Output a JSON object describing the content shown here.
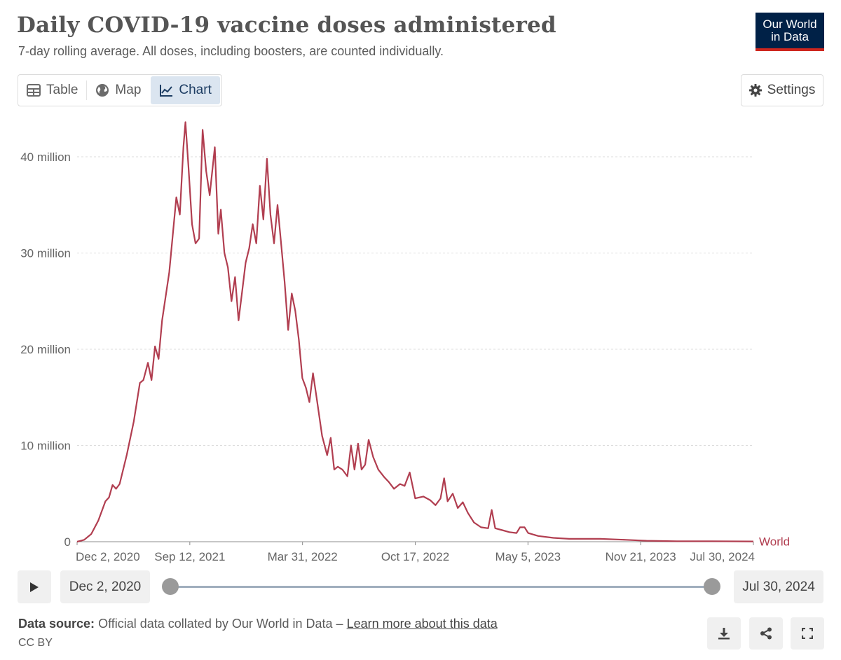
{
  "header": {
    "title": "Daily COVID-19 vaccine doses administered",
    "subtitle": "7-day rolling average. All doses, including boosters, are counted individually.",
    "logo_line1": "Our World",
    "logo_line2": "in Data"
  },
  "tabs": [
    {
      "label": "Table",
      "icon": "table-icon",
      "active": false
    },
    {
      "label": "Map",
      "icon": "globe-icon",
      "active": false
    },
    {
      "label": "Chart",
      "icon": "line-chart-icon",
      "active": true
    }
  ],
  "settings_label": "Settings",
  "timeline": {
    "start_label": "Dec 2, 2020",
    "end_label": "Jul 30, 2024"
  },
  "footer": {
    "source_prefix": "Data source:",
    "source_text": "Official data collated by Our World in Data –",
    "learn_more": "Learn more about this data",
    "license": "CC BY"
  },
  "colors": {
    "series": "#b13e50",
    "accent": "#002147",
    "logo_bar": "#ce261e"
  },
  "chart_data": {
    "type": "line",
    "title": "Daily COVID-19 vaccine doses administered",
    "subtitle": "7-day rolling average. All doses, including boosters, are counted individually.",
    "xlabel": "",
    "ylabel": "",
    "y_ticks": [
      {
        "value": 0,
        "label": "0"
      },
      {
        "value": 10,
        "label": "10 million"
      },
      {
        "value": 20,
        "label": "20 million"
      },
      {
        "value": 30,
        "label": "30 million"
      },
      {
        "value": 40,
        "label": "40 million"
      }
    ],
    "ylim": [
      0,
      44
    ],
    "x_ticks": [
      "Dec 2, 2020",
      "Sep 12, 2021",
      "Mar 31, 2022",
      "Oct 17, 2022",
      "May 5, 2023",
      "Nov 21, 2023",
      "Jul 30, 2024"
    ],
    "xlim": [
      "2020-12-02",
      "2024-07-30"
    ],
    "grid": "horizontal dashed",
    "series": [
      {
        "name": "World",
        "unit": "million doses",
        "points": [
          [
            "2020-12-02",
            0.0
          ],
          [
            "2020-12-16",
            0.2
          ],
          [
            "2020-12-30",
            0.8
          ],
          [
            "2021-01-13",
            2.2
          ],
          [
            "2021-01-27",
            4.2
          ],
          [
            "2021-02-03",
            4.6
          ],
          [
            "2021-02-10",
            5.9
          ],
          [
            "2021-02-17",
            5.5
          ],
          [
            "2021-02-24",
            6.0
          ],
          [
            "2021-03-10",
            9.0
          ],
          [
            "2021-03-24",
            12.5
          ],
          [
            "2021-04-05",
            16.5
          ],
          [
            "2021-04-12",
            16.8
          ],
          [
            "2021-04-21",
            18.6
          ],
          [
            "2021-04-28",
            16.8
          ],
          [
            "2021-05-05",
            20.3
          ],
          [
            "2021-05-12",
            19.0
          ],
          [
            "2021-05-19",
            23.0
          ],
          [
            "2021-06-02",
            28.0
          ],
          [
            "2021-06-16",
            35.8
          ],
          [
            "2021-06-23",
            34.0
          ],
          [
            "2021-06-30",
            41.0
          ],
          [
            "2021-07-04",
            43.6
          ],
          [
            "2021-07-10",
            39.0
          ],
          [
            "2021-07-17",
            33.0
          ],
          [
            "2021-07-24",
            31.0
          ],
          [
            "2021-07-31",
            31.5
          ],
          [
            "2021-08-07",
            42.8
          ],
          [
            "2021-08-14",
            38.5
          ],
          [
            "2021-08-21",
            36.0
          ],
          [
            "2021-08-31",
            41.0
          ],
          [
            "2021-09-07",
            32.0
          ],
          [
            "2021-09-12",
            34.5
          ],
          [
            "2021-09-19",
            30.0
          ],
          [
            "2021-09-26",
            28.5
          ],
          [
            "2021-10-03",
            25.0
          ],
          [
            "2021-10-10",
            27.5
          ],
          [
            "2021-10-17",
            23.0
          ],
          [
            "2021-10-24",
            26.0
          ],
          [
            "2021-10-31",
            29.0
          ],
          [
            "2021-11-07",
            30.5
          ],
          [
            "2021-11-14",
            33.0
          ],
          [
            "2021-11-21",
            31.0
          ],
          [
            "2021-11-28",
            37.0
          ],
          [
            "2021-12-05",
            33.5
          ],
          [
            "2021-12-12",
            39.8
          ],
          [
            "2021-12-19",
            34.0
          ],
          [
            "2021-12-26",
            31.0
          ],
          [
            "2022-01-02",
            35.0
          ],
          [
            "2022-01-09",
            31.0
          ],
          [
            "2022-01-16",
            27.0
          ],
          [
            "2022-01-23",
            22.0
          ],
          [
            "2022-01-30",
            25.8
          ],
          [
            "2022-02-06",
            24.0
          ],
          [
            "2022-02-13",
            21.0
          ],
          [
            "2022-02-20",
            17.0
          ],
          [
            "2022-02-27",
            16.0
          ],
          [
            "2022-03-06",
            14.5
          ],
          [
            "2022-03-13",
            17.5
          ],
          [
            "2022-03-20",
            15.0
          ],
          [
            "2022-03-31",
            11.0
          ],
          [
            "2022-04-10",
            9.0
          ],
          [
            "2022-04-17",
            10.8
          ],
          [
            "2022-04-24",
            7.5
          ],
          [
            "2022-05-01",
            7.8
          ],
          [
            "2022-05-10",
            7.5
          ],
          [
            "2022-05-20",
            6.8
          ],
          [
            "2022-05-27",
            10.0
          ],
          [
            "2022-06-03",
            7.5
          ],
          [
            "2022-06-10",
            10.2
          ],
          [
            "2022-06-17",
            7.5
          ],
          [
            "2022-06-24",
            8.0
          ],
          [
            "2022-07-01",
            10.6
          ],
          [
            "2022-07-10",
            8.8
          ],
          [
            "2022-07-20",
            7.5
          ],
          [
            "2022-08-01",
            6.7
          ],
          [
            "2022-08-10",
            6.2
          ],
          [
            "2022-08-20",
            5.5
          ],
          [
            "2022-09-01",
            6.0
          ],
          [
            "2022-09-10",
            5.8
          ],
          [
            "2022-09-20",
            7.2
          ],
          [
            "2022-10-01",
            4.5
          ],
          [
            "2022-10-17",
            4.7
          ],
          [
            "2022-10-31",
            4.3
          ],
          [
            "2022-11-10",
            3.8
          ],
          [
            "2022-11-20",
            4.5
          ],
          [
            "2022-11-27",
            6.6
          ],
          [
            "2022-12-04",
            4.2
          ],
          [
            "2022-12-14",
            5.0
          ],
          [
            "2022-12-24",
            3.5
          ],
          [
            "2023-01-03",
            4.1
          ],
          [
            "2023-01-13",
            3.0
          ],
          [
            "2023-01-25",
            2.0
          ],
          [
            "2023-02-08",
            1.5
          ],
          [
            "2023-02-22",
            1.4
          ],
          [
            "2023-03-01",
            3.3
          ],
          [
            "2023-03-08",
            1.4
          ],
          [
            "2023-03-22",
            1.2
          ],
          [
            "2023-04-05",
            1.0
          ],
          [
            "2023-04-19",
            0.9
          ],
          [
            "2023-04-26",
            1.5
          ],
          [
            "2023-05-05",
            1.5
          ],
          [
            "2023-05-12",
            0.9
          ],
          [
            "2023-06-01",
            0.6
          ],
          [
            "2023-07-01",
            0.4
          ],
          [
            "2023-08-01",
            0.3
          ],
          [
            "2023-09-01",
            0.3
          ],
          [
            "2023-10-01",
            0.3
          ],
          [
            "2023-11-21",
            0.2
          ],
          [
            "2024-01-01",
            0.1
          ],
          [
            "2024-03-01",
            0.05
          ],
          [
            "2024-05-01",
            0.05
          ],
          [
            "2024-07-30",
            0.03
          ]
        ]
      }
    ]
  }
}
